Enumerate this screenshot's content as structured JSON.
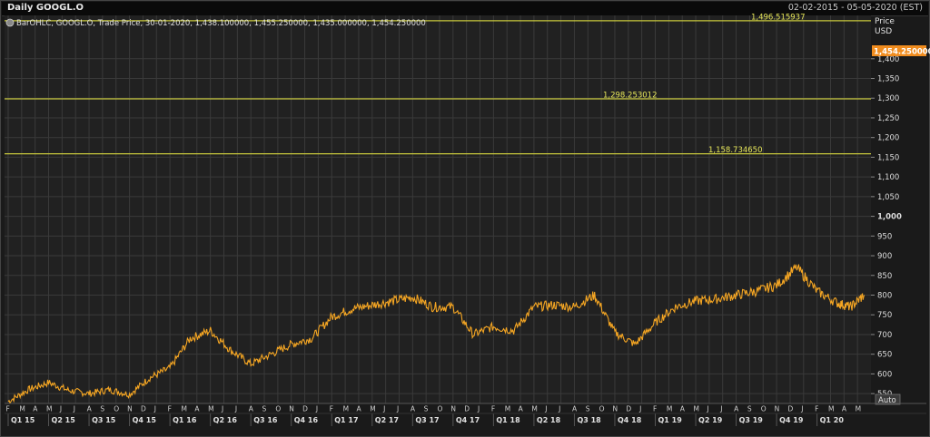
{
  "window": {
    "title": "Daily GOOGL.O",
    "date_range": "02-02-2015 - 05-05-2020 (EST)"
  },
  "legend": {
    "text": "BarOHLC, GOOGL.O, Trade Price, 30-01-2020, 1,438.100000, 1,455.250000, 1,435.000000, 1,454.250000"
  },
  "axis": {
    "y_title": "Price",
    "y_unit": "USD",
    "auto_label": "Auto",
    "last_price_tag": "1,454.250000"
  },
  "colors": {
    "background": "#212121",
    "grid": "#3a3a3a",
    "series": "#f5a623",
    "hline": "#c8c83c",
    "hline_text": "#e6e65a",
    "price_tag": "#f08c1e"
  },
  "chart_data": {
    "type": "line",
    "ylim": [
      525,
      1510
    ],
    "y_ticks": [
      550,
      600,
      650,
      700,
      750,
      800,
      850,
      900,
      950,
      1000,
      1050,
      1100,
      1150,
      1200,
      1250,
      1300,
      1350,
      1400
    ],
    "y_tick_labels": [
      "550",
      "600",
      "650",
      "700",
      "750",
      "800",
      "850",
      "900",
      "950",
      "1,000",
      "1,050",
      "1,100",
      "1,150",
      "1,200",
      "1,250",
      "1,300",
      "1,350",
      "1,400"
    ],
    "x_month_labels": [
      "F",
      "M",
      "A",
      "M",
      "J",
      "J",
      "A",
      "S",
      "O",
      "N",
      "D",
      "J",
      "F",
      "M",
      "A",
      "M",
      "J",
      "J",
      "A",
      "S",
      "O",
      "N",
      "D",
      "J",
      "F",
      "M",
      "A",
      "M",
      "J",
      "J",
      "A",
      "S",
      "O",
      "N",
      "D",
      "J",
      "F",
      "M",
      "A",
      "M",
      "J",
      "J",
      "A",
      "S",
      "O",
      "N",
      "D",
      "J",
      "F",
      "M",
      "A",
      "M",
      "J",
      "J",
      "A",
      "S",
      "O",
      "N",
      "D",
      "J",
      "F",
      "M",
      "A",
      "M"
    ],
    "x_quarter_labels": [
      "Q1 15",
      "Q2 15",
      "Q3 15",
      "Q4 15",
      "Q1 16",
      "Q2 16",
      "Q3 16",
      "Q4 16",
      "Q1 17",
      "Q2 17",
      "Q3 17",
      "Q4 17",
      "Q1 18",
      "Q2 18",
      "Q3 18",
      "Q4 18",
      "Q1 19",
      "Q2 19",
      "Q3 19",
      "Q4 19",
      "Q1 20"
    ],
    "horizontal_lines": [
      {
        "label": "1,496.515937",
        "value": 1496.515937
      },
      {
        "label": "1,298.253012",
        "value": 1298.253012
      },
      {
        "label": "1,158.734650",
        "value": 1158.73465
      }
    ],
    "series": [
      {
        "color": "#f5a623",
        "x": [
          0,
          1.5,
          3,
          4.5,
          6,
          7.5,
          9,
          10.5,
          12,
          13.5,
          15,
          16.5,
          18,
          19.5,
          21,
          22.5,
          24,
          25.5,
          27,
          28.5,
          30,
          31.5,
          33,
          34.5,
          36,
          37.5,
          39,
          40.5,
          42,
          43.5,
          45,
          46.5,
          48,
          49.5,
          51,
          52.5,
          54,
          55.5,
          57,
          58.5,
          60,
          61.5,
          62.5,
          63.5
        ],
        "values": [
          530,
          560,
          578,
          558,
          550,
          560,
          548,
          590,
          615,
          690,
          710,
          660,
          625,
          650,
          675,
          690,
          745,
          765,
          775,
          785,
          795,
          770,
          770,
          700,
          720,
          710,
          770,
          775,
          770,
          800,
          705,
          675,
          730,
          770,
          785,
          790,
          800,
          810,
          825,
          870,
          810,
          780,
          770,
          800
        ]
      }
    ]
  }
}
